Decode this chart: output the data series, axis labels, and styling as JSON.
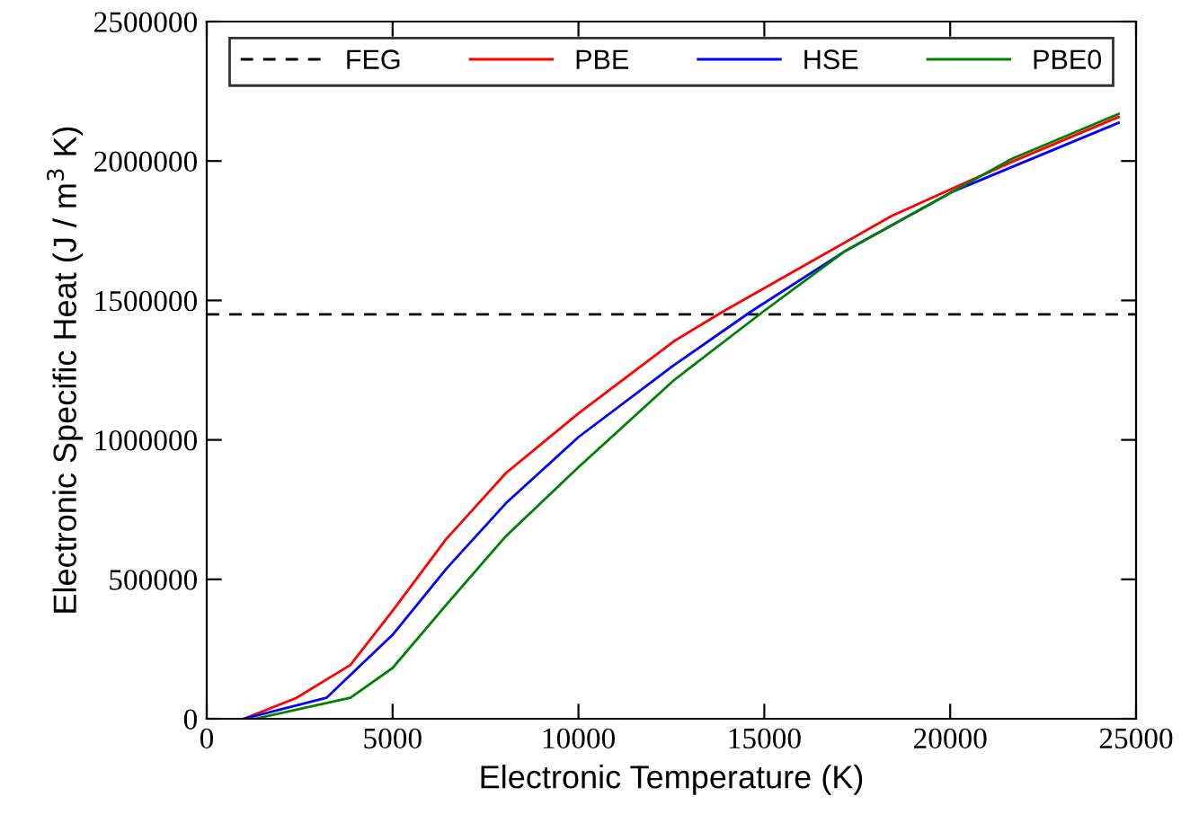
{
  "chart_data": {
    "type": "line",
    "xlabel": "Electronic Temperature (K)",
    "ylabel": "Electronic Specific Heat (J / m$^{3}$ K)",
    "xlim": [
      0,
      25000
    ],
    "xticks": [
      0,
      5000,
      10000,
      15000,
      20000,
      25000
    ],
    "ylim": [
      0,
      2500000
    ],
    "yticks": [
      0,
      500000,
      1000000,
      1500000,
      2000000,
      2500000
    ],
    "legend": "top",
    "grid": false,
    "series": [
      {
        "name": "FEG",
        "color": "#000000",
        "line_style": "dashed",
        "x": [
          0,
          25000
        ],
        "values": [
          1450000,
          1450000
        ]
      },
      {
        "name": "PBE",
        "color": "#ff0000",
        "x": [
          1000,
          2415,
          3865,
          5000,
          6440,
          8050,
          10000,
          12560,
          13900,
          18440,
          21660,
          24530
        ],
        "values": [
          0,
          75000,
          193000,
          387000,
          644000,
          881000,
          1095000,
          1353000,
          1461000,
          1804000,
          1997000,
          2158000
        ]
      },
      {
        "name": "HSE",
        "color": "#0000ff",
        "x": [
          1000,
          3220,
          5000,
          6440,
          8050,
          10000,
          12560,
          14650,
          17150,
          20060,
          24530
        ],
        "values": [
          0,
          75000,
          301000,
          537000,
          773000,
          1010000,
          1267000,
          1461000,
          1675000,
          1890000,
          2137000
        ]
      },
      {
        "name": "PBE0",
        "color": "#008000",
        "x": [
          1300,
          3865,
          5000,
          6440,
          8050,
          10000,
          12560,
          14980,
          17150,
          21660,
          24530
        ],
        "values": [
          0,
          75000,
          182000,
          408000,
          655000,
          902000,
          1213000,
          1461000,
          1675000,
          2008000,
          2169000
        ]
      }
    ]
  }
}
